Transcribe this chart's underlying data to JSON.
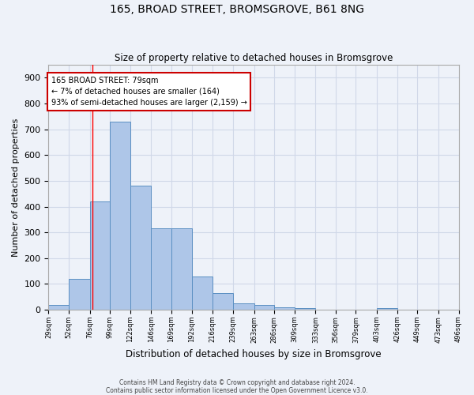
{
  "title1": "165, BROAD STREET, BROMSGROVE, B61 8NG",
  "title2": "Size of property relative to detached houses in Bromsgrove",
  "xlabel": "Distribution of detached houses by size in Bromsgrove",
  "ylabel": "Number of detached properties",
  "bin_edges": [
    29,
    52,
    76,
    99,
    122,
    146,
    169,
    192,
    216,
    239,
    263,
    286,
    309,
    333,
    356,
    379,
    403,
    426,
    449,
    473,
    496
  ],
  "bar_heights": [
    18,
    120,
    420,
    730,
    480,
    315,
    315,
    130,
    65,
    25,
    20,
    10,
    5,
    0,
    0,
    0,
    5,
    0,
    0,
    0
  ],
  "bar_color": "#aec6e8",
  "bar_edge_color": "#5a8fc2",
  "grid_color": "#d0d8e8",
  "background_color": "#eef2f9",
  "red_line_x": 79,
  "annotation_text": "165 BROAD STREET: 79sqm\n← 7% of detached houses are smaller (164)\n93% of semi-detached houses are larger (2,159) →",
  "annotation_box_color": "#ffffff",
  "annotation_edge_color": "#cc0000",
  "footnote1": "Contains HM Land Registry data © Crown copyright and database right 2024.",
  "footnote2": "Contains public sector information licensed under the Open Government Licence v3.0.",
  "ylim": [
    0,
    950
  ],
  "yticks": [
    0,
    100,
    200,
    300,
    400,
    500,
    600,
    700,
    800,
    900
  ]
}
